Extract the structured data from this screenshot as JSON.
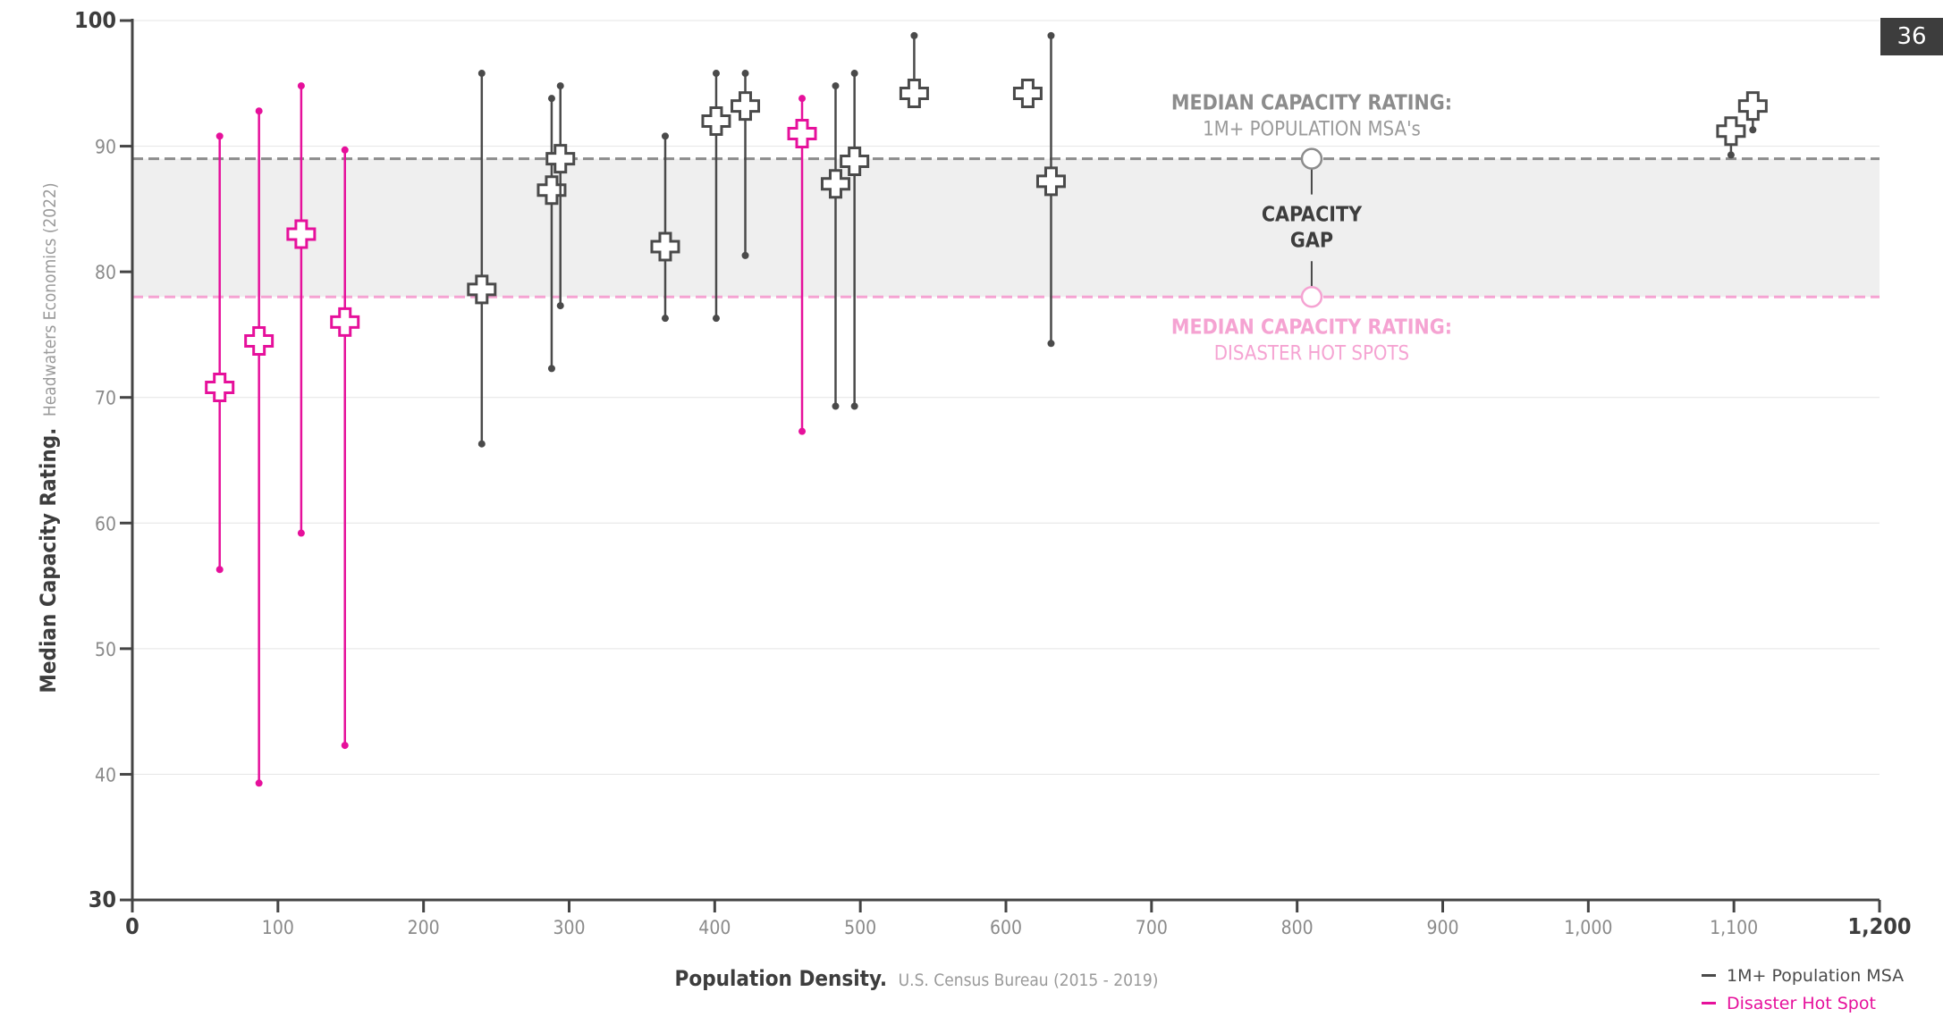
{
  "page_number": "36",
  "colors": {
    "msa": "#4a4a4a",
    "hotspot": "#e6109b",
    "msa_median_line": "#8c8c8c",
    "hotspot_median_line": "#f5a3d2",
    "gap_fill": "#efefef",
    "axis": "#444444"
  },
  "annotations": {
    "msa_median_title": "MEDIAN CAPACITY RATING:",
    "msa_median_sub": "1M+ POPULATION MSA's",
    "gap_line1": "CAPACITY",
    "gap_line2": "GAP",
    "hotspot_median_title": "MEDIAN CAPACITY RATING:",
    "hotspot_median_sub": "DISASTER HOT SPOTS"
  },
  "legend": {
    "msa_label": "1M+ Population MSA",
    "hotspot_label": "Disaster Hot Spot"
  },
  "chart_data": {
    "type": "scatter",
    "xlabel_bold": "Population Density.",
    "xlabel_source": "U.S. Census Bureau  (2015 - 2019)",
    "ylabel_bold": "Median Capacity Rating.",
    "ylabel_source": "Headwaters Economics  (2022)",
    "xlim": [
      0,
      1200
    ],
    "ylim": [
      30,
      100
    ],
    "x_ticks": [
      0,
      100,
      200,
      300,
      400,
      500,
      600,
      700,
      800,
      900,
      1000,
      1100,
      1200
    ],
    "x_tick_labels": [
      "0",
      "100",
      "200",
      "300",
      "400",
      "500",
      "600",
      "700",
      "800",
      "900",
      "1,000",
      "1,100",
      "1,200"
    ],
    "y_ticks": [
      30,
      40,
      50,
      60,
      70,
      80,
      90,
      100
    ],
    "y_tick_labels": [
      "30",
      "40",
      "50",
      "60",
      "70",
      "80",
      "90",
      "100"
    ],
    "grid": true,
    "reference_lines": {
      "msa_median": 89,
      "hotspot_median": 78
    },
    "series": [
      {
        "name": "1M+ Population MSA",
        "points": [
          {
            "x": 240,
            "y": 78.6,
            "low": 66.3,
            "high": 95.8
          },
          {
            "x": 288,
            "y": 86.5,
            "low": 72.3,
            "high": 93.8
          },
          {
            "x": 294,
            "y": 89.0,
            "low": 77.3,
            "high": 94.8
          },
          {
            "x": 366,
            "y": 82.0,
            "low": 76.3,
            "high": 90.8
          },
          {
            "x": 401,
            "y": 92.0,
            "low": 76.3,
            "high": 95.8
          },
          {
            "x": 421,
            "y": 93.2,
            "low": 81.3,
            "high": 95.8
          },
          {
            "x": 483,
            "y": 87.0,
            "low": 69.3,
            "high": 94.8
          },
          {
            "x": 496,
            "y": 88.8,
            "low": 69.3,
            "high": 95.8
          },
          {
            "x": 537,
            "y": 94.2,
            "low": 94.2,
            "high": 98.8
          },
          {
            "x": 615,
            "y": 94.2,
            "low": 94.2,
            "high": 94.2
          },
          {
            "x": 631,
            "y": 87.2,
            "low": 74.3,
            "high": 98.8
          },
          {
            "x": 1098,
            "y": 91.2,
            "low": 89.3,
            "high": 91.2
          },
          {
            "x": 1113,
            "y": 93.2,
            "low": 91.3,
            "high": 93.2
          }
        ]
      },
      {
        "name": "Disaster Hot Spot",
        "points": [
          {
            "x": 60,
            "y": 70.8,
            "low": 56.3,
            "high": 90.8
          },
          {
            "x": 87,
            "y": 74.5,
            "low": 39.3,
            "high": 92.8
          },
          {
            "x": 116,
            "y": 83.0,
            "low": 59.2,
            "high": 94.8
          },
          {
            "x": 146,
            "y": 76.0,
            "low": 42.3,
            "high": 89.7
          },
          {
            "x": 460,
            "y": 91.0,
            "low": 67.3,
            "high": 93.8
          }
        ]
      }
    ]
  }
}
